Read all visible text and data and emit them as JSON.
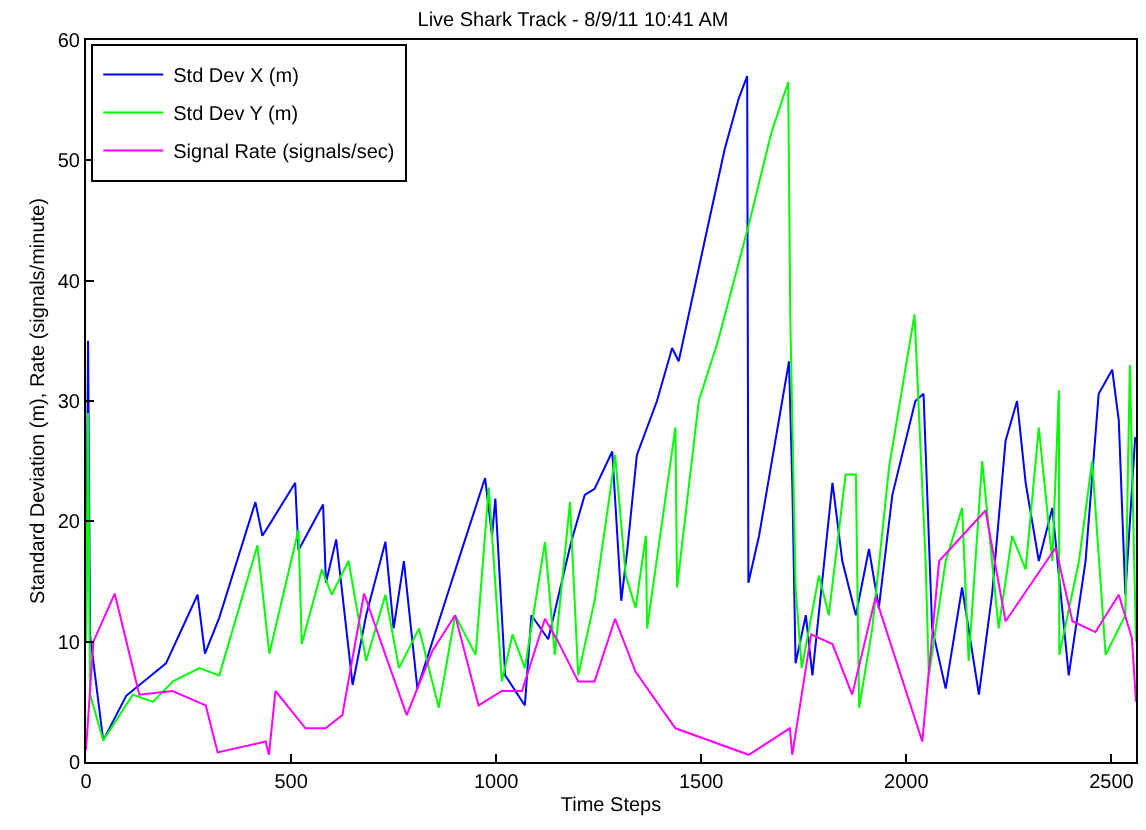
{
  "chart_data": {
    "type": "line",
    "title": "Live Shark Track - 8/9/11 10:41 AM",
    "xlabel": "Time Steps",
    "ylabel": "Standard Deviation (m), Rate (signals/minute)",
    "xlim": [
      0,
      2560
    ],
    "ylim": [
      0,
      60
    ],
    "xticks": [
      0,
      500,
      1000,
      1500,
      2000,
      2500
    ],
    "yticks": [
      0,
      10,
      20,
      30,
      40,
      50,
      60
    ],
    "grid": false,
    "legend": "top left",
    "marker": "none",
    "line_style": "solid",
    "series": [
      {
        "name": "Std Dev X (m)",
        "color": "#0000ff",
        "x": [
          0,
          5,
          10,
          42,
          98,
          195,
          272,
          290,
          325,
          413,
          430,
          445,
          510,
          518,
          578,
          585,
          610,
          650,
          683,
          730,
          750,
          775,
          808,
          865,
          913,
          973,
          990,
          998,
          1022,
          1070,
          1086,
          1127,
          1183,
          1216,
          1240,
          1283,
          1305,
          1320,
          1343,
          1392,
          1429,
          1445,
          1509,
          1557,
          1591,
          1612,
          1615,
          1641,
          1714,
          1722,
          1730,
          1755,
          1771,
          1820,
          1844,
          1877,
          1909,
          1933,
          1966,
          2022,
          2042,
          2063,
          2096,
          2136,
          2177,
          2209,
          2242,
          2270,
          2291,
          2323,
          2356,
          2396,
          2437,
          2469,
          2502,
          2518,
          2534,
          2558
        ],
        "values": [
          10,
          35,
          10.5,
          1.8,
          5.5,
          8.2,
          13.9,
          9,
          12,
          21.6,
          18.8,
          19.6,
          23.2,
          17.6,
          21.4,
          14.9,
          18.5,
          6.4,
          12.2,
          18.3,
          11.1,
          16.7,
          6.1,
          12.2,
          17.3,
          23.6,
          18.8,
          21.9,
          7.2,
          4.7,
          12.2,
          10.2,
          18.3,
          22.2,
          22.7,
          25.8,
          13.4,
          17.7,
          25.5,
          30,
          34.4,
          33.3,
          43.4,
          50.9,
          55.1,
          57,
          14.9,
          18.8,
          33.3,
          23.2,
          8.2,
          12.2,
          7.2,
          23.2,
          16.7,
          12.2,
          17.7,
          12.8,
          22.2,
          30,
          30.6,
          11.1,
          6.1,
          14.5,
          5.6,
          13.9,
          26.7,
          30,
          23.2,
          16.7,
          21.1,
          7.2,
          16.7,
          30.6,
          32.6,
          28.4,
          13.9,
          27
        ]
      },
      {
        "name": "Std Dev Y (m)",
        "color": "#00ff00",
        "x": [
          0,
          5,
          10,
          42,
          114,
          163,
          212,
          277,
          325,
          418,
          447,
          518,
          526,
          575,
          599,
          640,
          683,
          730,
          763,
          812,
          860,
          900,
          950,
          982,
          1014,
          1040,
          1070,
          1119,
          1143,
          1180,
          1200,
          1240,
          1281,
          1290,
          1316,
          1340,
          1365,
          1368,
          1437,
          1441,
          1494,
          1541,
          1614,
          1671,
          1712,
          1717,
          1730,
          1745,
          1787,
          1811,
          1852,
          1877,
          1885,
          1917,
          1958,
          2020,
          2047,
          2055,
          2096,
          2136,
          2152,
          2185,
          2225,
          2258,
          2291,
          2323,
          2356,
          2372,
          2373,
          2421,
          2453,
          2486,
          2534,
          2545,
          2560
        ],
        "values": [
          10,
          29,
          5.6,
          1.8,
          5.6,
          5,
          6.7,
          7.8,
          7.2,
          18,
          9,
          19.3,
          9.8,
          16,
          13.9,
          16.7,
          8.4,
          13.9,
          7.8,
          11.1,
          4.5,
          12.2,
          8.9,
          22.8,
          6.7,
          10.6,
          7.8,
          18.3,
          8.9,
          21.6,
          7.2,
          13.4,
          23.2,
          25.5,
          15.5,
          12.8,
          18.8,
          11.1,
          27.8,
          14.5,
          30,
          35,
          44.4,
          52.3,
          56.5,
          37.2,
          14.5,
          7.8,
          15.5,
          12.2,
          23.9,
          23.9,
          4.5,
          11.1,
          24.5,
          37.2,
          16.7,
          7.2,
          16.7,
          21.1,
          8.4,
          25,
          11.1,
          18.8,
          16,
          27.8,
          16.7,
          30.9,
          8.9,
          16.7,
          25,
          8.9,
          12.2,
          33,
          10
        ]
      },
      {
        "name": "Signal Rate (signals/sec)",
        "color": "#ff00ff",
        "x": [
          0,
          18,
          70,
          130,
          211,
          292,
          321,
          438,
          446,
          462,
          535,
          584,
          625,
          678,
          730,
          782,
          844,
          900,
          957,
          1014,
          1063,
          1119,
          1151,
          1200,
          1240,
          1290,
          1340,
          1437,
          1616,
          1716,
          1722,
          1768,
          1820,
          1868,
          1925,
          2039,
          2080,
          2193,
          2242,
          2364,
          2405,
          2461,
          2518,
          2550,
          2560
        ],
        "values": [
          1,
          10,
          14,
          5.6,
          5.9,
          4.7,
          0.8,
          1.7,
          0.6,
          5.9,
          2.8,
          2.8,
          3.9,
          14,
          8.9,
          3.9,
          9.2,
          12.2,
          4.7,
          5.9,
          5.9,
          11.9,
          10,
          6.7,
          6.7,
          11.9,
          7.5,
          2.8,
          0.6,
          2.8,
          0.6,
          10.6,
          9.8,
          5.6,
          13.7,
          1.7,
          16.7,
          20.9,
          11.7,
          17.8,
          11.7,
          10.8,
          13.9,
          10.3,
          5
        ]
      }
    ]
  }
}
